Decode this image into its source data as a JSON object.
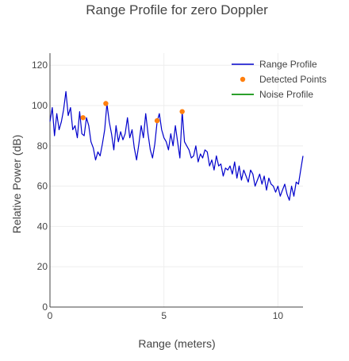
{
  "chart_data": {
    "type": "line",
    "title": "Range Profile for zero Doppler",
    "xlabel": "Range (meters)",
    "ylabel": "Relative Power (dB)",
    "xlim": [
      0,
      11.1
    ],
    "ylim": [
      0,
      126
    ],
    "x_ticks": [
      0,
      5,
      10
    ],
    "y_ticks": [
      0,
      20,
      40,
      60,
      80,
      100,
      120
    ],
    "grid": true,
    "legend_position": "top-right",
    "colors": {
      "range_profile": "#0000cc",
      "detected_points": "#ff7f0e",
      "noise_profile": "#2ca02c"
    },
    "series": [
      {
        "name": "Range Profile",
        "kind": "line",
        "x": [
          0,
          0.1,
          0.2,
          0.3,
          0.4,
          0.5,
          0.6,
          0.7,
          0.8,
          0.9,
          1.0,
          1.1,
          1.2,
          1.3,
          1.4,
          1.5,
          1.6,
          1.7,
          1.8,
          1.9,
          2.0,
          2.1,
          2.2,
          2.3,
          2.4,
          2.5,
          2.6,
          2.7,
          2.8,
          2.9,
          3.0,
          3.1,
          3.2,
          3.3,
          3.4,
          3.5,
          3.6,
          3.7,
          3.8,
          3.9,
          4.0,
          4.1,
          4.2,
          4.3,
          4.4,
          4.5,
          4.6,
          4.7,
          4.8,
          4.9,
          5.0,
          5.1,
          5.2,
          5.3,
          5.4,
          5.5,
          5.6,
          5.7,
          5.8,
          5.9,
          6.0,
          6.1,
          6.2,
          6.3,
          6.4,
          6.5,
          6.6,
          6.7,
          6.8,
          6.9,
          7.0,
          7.1,
          7.2,
          7.3,
          7.4,
          7.5,
          7.6,
          7.7,
          7.8,
          7.9,
          8.0,
          8.1,
          8.2,
          8.3,
          8.4,
          8.5,
          8.6,
          8.7,
          8.8,
          8.9,
          9.0,
          9.1,
          9.2,
          9.3,
          9.4,
          9.5,
          9.6,
          9.7,
          9.8,
          9.9,
          10.0,
          10.1,
          10.2,
          10.3,
          10.4,
          10.5,
          10.6,
          10.7,
          10.8,
          10.9,
          11.0,
          11.1
        ],
        "y": [
          92,
          99,
          85,
          96,
          88,
          92,
          98,
          107,
          95,
          99,
          88,
          90,
          84,
          97,
          86,
          85,
          94,
          90,
          82,
          79,
          73,
          77,
          75,
          81,
          88,
          101,
          92,
          86,
          78,
          90,
          82,
          87,
          83,
          86,
          94,
          84,
          88,
          79,
          73,
          81,
          90,
          84,
          96,
          86,
          78,
          74,
          81,
          92,
          96,
          88,
          84,
          82,
          78,
          86,
          80,
          90,
          82,
          74,
          97,
          82,
          80,
          78,
          74,
          75,
          80,
          72,
          76,
          74,
          78,
          77,
          70,
          73,
          68,
          75,
          70,
          71,
          65,
          69,
          68,
          70,
          66,
          72,
          64,
          70,
          63,
          68,
          65,
          62,
          68,
          66,
          60,
          63,
          66,
          61,
          65,
          58,
          64,
          61,
          60,
          57,
          60,
          55,
          58,
          61,
          56,
          53,
          60,
          55,
          62,
          61,
          68,
          75
        ]
      },
      {
        "name": "Detected Points",
        "kind": "markers",
        "x": [
          1.45,
          2.45,
          4.7,
          5.8
        ],
        "y": [
          94,
          101,
          92.5,
          97
        ]
      },
      {
        "name": "Noise Profile",
        "kind": "line",
        "x": [],
        "y": []
      }
    ]
  }
}
